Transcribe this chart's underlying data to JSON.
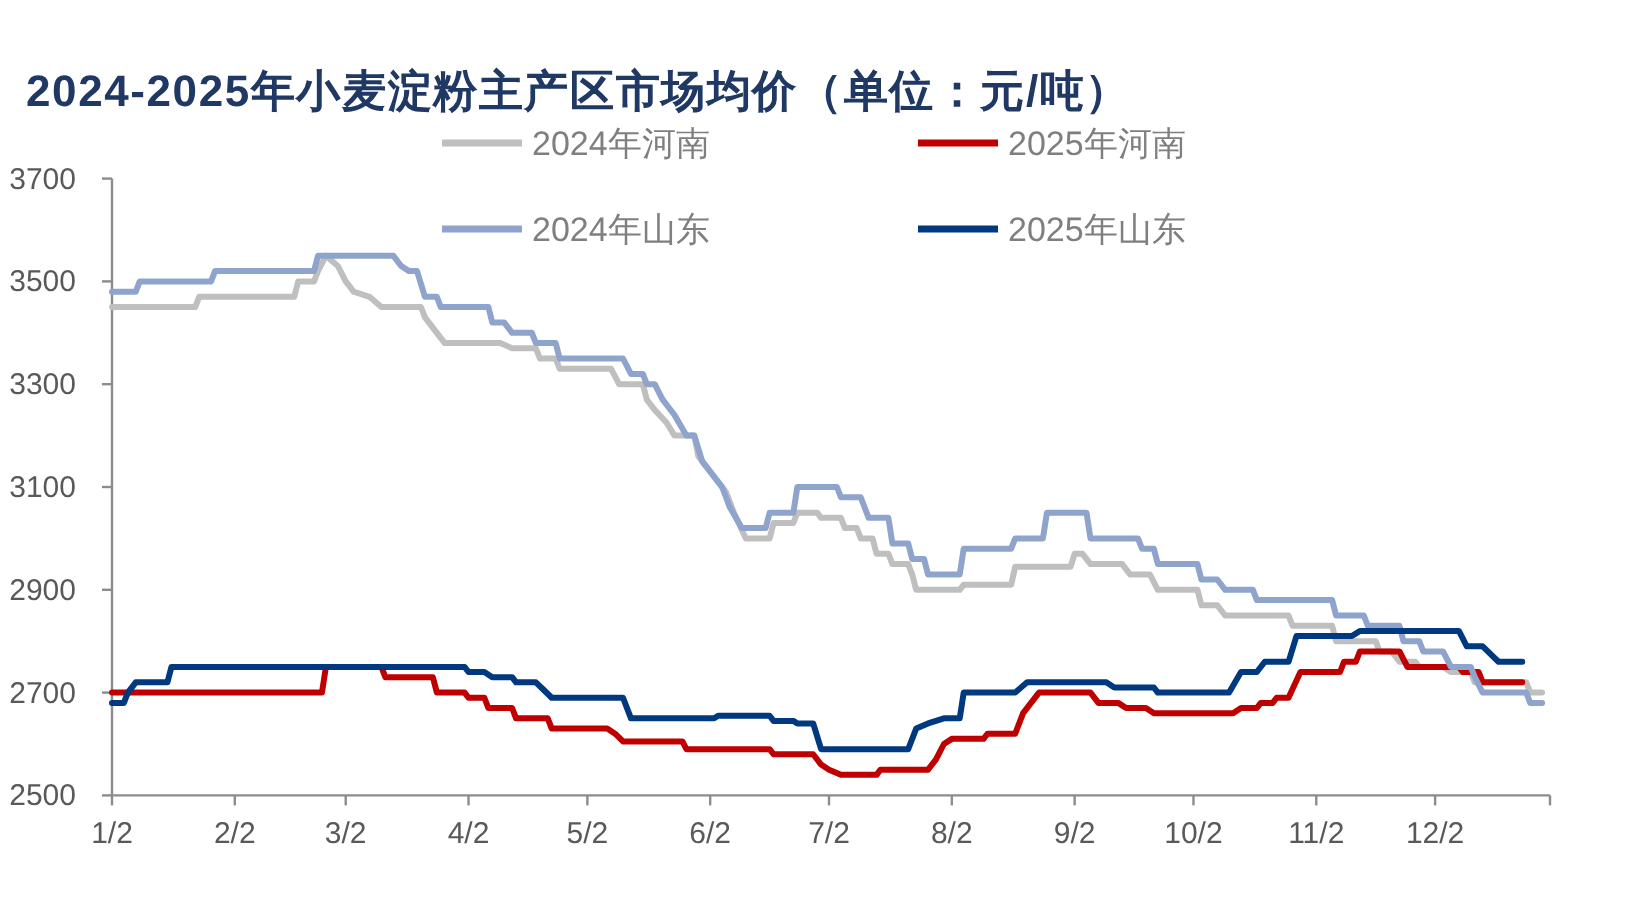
{
  "chart_data": {
    "type": "line",
    "title": "2024-2025年小麦淀粉主产区市场均价（单位：元/吨）",
    "xlim": [
      "--01-02",
      "--12-31"
    ],
    "xticks": [
      {
        "value": "--01-02",
        "label": "1/2"
      },
      {
        "value": "--02-02",
        "label": "2/2"
      },
      {
        "value": "--03-02",
        "label": "3/2"
      },
      {
        "value": "--04-02",
        "label": "4/2"
      },
      {
        "value": "--05-02",
        "label": "5/2"
      },
      {
        "value": "--06-02",
        "label": "6/2"
      },
      {
        "value": "--07-02",
        "label": "7/2"
      },
      {
        "value": "--08-02",
        "label": "8/2"
      },
      {
        "value": "--09-02",
        "label": "9/2"
      },
      {
        "value": "--10-02",
        "label": "10/2"
      },
      {
        "value": "--11-02",
        "label": "11/2"
      },
      {
        "value": "--12-02",
        "label": "12/2"
      },
      {
        "value": "--12-31",
        "label": null
      }
    ],
    "ylim": [
      2500,
      3700
    ],
    "yticks": [
      2500,
      2700,
      2900,
      3100,
      3300,
      3500,
      3700
    ],
    "legend": "top",
    "line_style": "solid",
    "series": [
      {
        "name": "2024年河南",
        "color": "#bfbfbf",
        "x": [
          "--01-02",
          "--01-23",
          "--01-24",
          "--02-17",
          "--02-18",
          "--02-22",
          "--02-23",
          "--02-25",
          "--02-28",
          "--03-02",
          "--03-04",
          "--03-08",
          "--03-11",
          "--03-21",
          "--03-22",
          "--03-25",
          "--03-27",
          "--04-10",
          "--04-13",
          "--04-19",
          "--04-20",
          "--04-24",
          "--04-25",
          "--05-08",
          "--05-10",
          "--05-16",
          "--05-17",
          "--05-19",
          "--05-22",
          "--05-24",
          "--05-29",
          "--05-30",
          "--06-02",
          "--06-06",
          "--06-08",
          "--06-11",
          "--06-17",
          "--06-18",
          "--06-23",
          "--06-24",
          "--06-29",
          "--06-30",
          "--07-05",
          "--07-06",
          "--07-09",
          "--07-10",
          "--07-13",
          "--07-14",
          "--07-17",
          "--07-18",
          "--07-22",
          "--07-23",
          "--07-24",
          "--08-04",
          "--08-05",
          "--08-17",
          "--08-18",
          "--09-01",
          "--09-02",
          "--09-04",
          "--09-06",
          "--09-14",
          "--09-16",
          "--09-21",
          "--09-23",
          "--10-03",
          "--10-04",
          "--10-08",
          "--10-10",
          "--10-26",
          "--10-27",
          "--11-06",
          "--11-07",
          "--11-17",
          "--11-18",
          "--11-21",
          "--11-23",
          "--11-27",
          "--11-28",
          "--12-04",
          "--12-06",
          "--12-11",
          "--12-12",
          "--12-25",
          "--12-26",
          "--12-29"
        ],
        "values": [
          3450,
          3450,
          3470,
          3470,
          3500,
          3500,
          3520,
          3550,
          3530,
          3500,
          3480,
          3470,
          3450,
          3450,
          3430,
          3400,
          3380,
          3380,
          3370,
          3370,
          3350,
          3350,
          3330,
          3330,
          3300,
          3300,
          3270,
          3250,
          3225,
          3200,
          3200,
          3160,
          3130,
          3090,
          3050,
          3000,
          3000,
          3030,
          3030,
          3050,
          3050,
          3040,
          3040,
          3020,
          3020,
          3000,
          3000,
          2970,
          2970,
          2950,
          2950,
          2930,
          2900,
          2900,
          2910,
          2910,
          2945,
          2945,
          2970,
          2970,
          2950,
          2950,
          2930,
          2930,
          2900,
          2900,
          2870,
          2870,
          2850,
          2850,
          2830,
          2830,
          2800,
          2800,
          2780,
          2780,
          2760,
          2760,
          2750,
          2750,
          2740,
          2740,
          2720,
          2720,
          2700,
          2700
        ]
      },
      {
        "name": "2025年河南",
        "color": "#c00000",
        "x": [
          "--01-02",
          "--02-24",
          "--02-25",
          "--03-11",
          "--03-12",
          "--03-24",
          "--03-25",
          "--04-01",
          "--04-02",
          "--04-06",
          "--04-07",
          "--04-13",
          "--04-14",
          "--04-22",
          "--04-23",
          "--05-07",
          "--05-09",
          "--05-11",
          "--05-26",
          "--05-27",
          "--06-17",
          "--06-18",
          "--06-28",
          "--06-30",
          "--07-02",
          "--07-05",
          "--07-14",
          "--07-15",
          "--07-27",
          "--07-29",
          "--07-31",
          "--08-02",
          "--08-10",
          "--08-11",
          "--08-18",
          "--08-20",
          "--08-22",
          "--08-24",
          "--09-06",
          "--09-08",
          "--09-13",
          "--09-15",
          "--09-20",
          "--09-22",
          "--10-12",
          "--10-14",
          "--10-18",
          "--10-19",
          "--10-22",
          "--10-23",
          "--10-26",
          "--10-29",
          "--11-08",
          "--11-09",
          "--11-12",
          "--11-13",
          "--11-23",
          "--11-25",
          "--12-08",
          "--12-09",
          "--12-13",
          "--12-14",
          "--12-24"
        ],
        "values": [
          2700,
          2700,
          2750,
          2750,
          2730,
          2730,
          2700,
          2700,
          2690,
          2690,
          2670,
          2670,
          2650,
          2650,
          2630,
          2630,
          2620,
          2605,
          2605,
          2590,
          2590,
          2580,
          2580,
          2560,
          2550,
          2540,
          2540,
          2550,
          2550,
          2570,
          2600,
          2610,
          2610,
          2620,
          2620,
          2660,
          2680,
          2700,
          2700,
          2680,
          2680,
          2670,
          2670,
          2660,
          2660,
          2670,
          2670,
          2680,
          2680,
          2690,
          2690,
          2740,
          2740,
          2760,
          2760,
          2780,
          2780,
          2750,
          2750,
          2740,
          2740,
          2720,
          2720
        ]
      },
      {
        "name": "2024年山东",
        "color": "#8ea4cc",
        "x": [
          "--01-02",
          "--01-08",
          "--01-09",
          "--01-27",
          "--01-28",
          "--02-22",
          "--02-23",
          "--03-14",
          "--03-16",
          "--03-18",
          "--03-20",
          "--03-22",
          "--03-25",
          "--03-26",
          "--04-07",
          "--04-08",
          "--04-11",
          "--04-13",
          "--04-18",
          "--04-19",
          "--04-24",
          "--04-25",
          "--05-11",
          "--05-13",
          "--05-16",
          "--05-17",
          "--05-19",
          "--05-21",
          "--05-24",
          "--05-27",
          "--05-29",
          "--05-31",
          "--06-02",
          "--06-05",
          "--06-07",
          "--06-10",
          "--06-16",
          "--06-17",
          "--06-23",
          "--06-24",
          "--07-04",
          "--07-05",
          "--07-10",
          "--07-12",
          "--07-17",
          "--07-18",
          "--07-22",
          "--07-23",
          "--07-26",
          "--07-27",
          "--08-04",
          "--08-05",
          "--08-17",
          "--08-18",
          "--08-25",
          "--08-26",
          "--09-05",
          "--09-06",
          "--09-18",
          "--09-19",
          "--09-22",
          "--09-23",
          "--10-03",
          "--10-04",
          "--10-08",
          "--10-10",
          "--10-17",
          "--10-18",
          "--11-06",
          "--11-07",
          "--11-14",
          "--11-15",
          "--11-23",
          "--11-24",
          "--11-28",
          "--11-29",
          "--12-04",
          "--12-06",
          "--12-11",
          "--12-12",
          "--12-14",
          "--12-25",
          "--12-26",
          "--12-29"
        ],
        "values": [
          3480,
          3480,
          3500,
          3500,
          3520,
          3520,
          3550,
          3550,
          3530,
          3520,
          3520,
          3470,
          3470,
          3450,
          3450,
          3420,
          3420,
          3400,
          3400,
          3380,
          3380,
          3350,
          3350,
          3320,
          3320,
          3300,
          3300,
          3270,
          3240,
          3200,
          3200,
          3150,
          3130,
          3100,
          3060,
          3020,
          3020,
          3050,
          3050,
          3100,
          3100,
          3080,
          3080,
          3040,
          3040,
          2990,
          2990,
          2960,
          2960,
          2930,
          2930,
          2980,
          2980,
          3000,
          3000,
          3050,
          3050,
          3000,
          3000,
          2980,
          2980,
          2950,
          2950,
          2920,
          2920,
          2900,
          2900,
          2880,
          2880,
          2850,
          2850,
          2830,
          2830,
          2800,
          2800,
          2780,
          2780,
          2750,
          2750,
          2730,
          2700,
          2700,
          2680,
          2680
        ]
      },
      {
        "name": "2025年山东",
        "color": "#00397f",
        "x": [
          "--01-02",
          "--01-05",
          "--01-06",
          "--01-08",
          "--01-16",
          "--01-17",
          "--04-01",
          "--04-02",
          "--04-06",
          "--04-08",
          "--04-13",
          "--04-14",
          "--04-19",
          "--04-21",
          "--04-23",
          "--05-11",
          "--05-13",
          "--06-03",
          "--06-04",
          "--06-17",
          "--06-18",
          "--06-23",
          "--06-24",
          "--06-28",
          "--06-30",
          "--07-22",
          "--07-24",
          "--07-27",
          "--07-31",
          "--08-04",
          "--08-05",
          "--08-18",
          "--08-21",
          "--09-10",
          "--09-12",
          "--09-22",
          "--09-23",
          "--10-11",
          "--10-14",
          "--10-18",
          "--10-20",
          "--10-26",
          "--10-28",
          "--11-11",
          "--11-13",
          "--12-08",
          "--12-10",
          "--12-14",
          "--12-18",
          "--12-24"
        ],
        "values": [
          2680,
          2680,
          2700,
          2720,
          2720,
          2750,
          2750,
          2740,
          2740,
          2730,
          2730,
          2720,
          2720,
          2705,
          2690,
          2690,
          2650,
          2650,
          2655,
          2655,
          2645,
          2645,
          2640,
          2640,
          2590,
          2590,
          2630,
          2640,
          2650,
          2650,
          2700,
          2700,
          2720,
          2720,
          2710,
          2710,
          2700,
          2700,
          2740,
          2740,
          2760,
          2760,
          2810,
          2810,
          2820,
          2820,
          2790,
          2790,
          2760,
          2760
        ]
      }
    ]
  }
}
